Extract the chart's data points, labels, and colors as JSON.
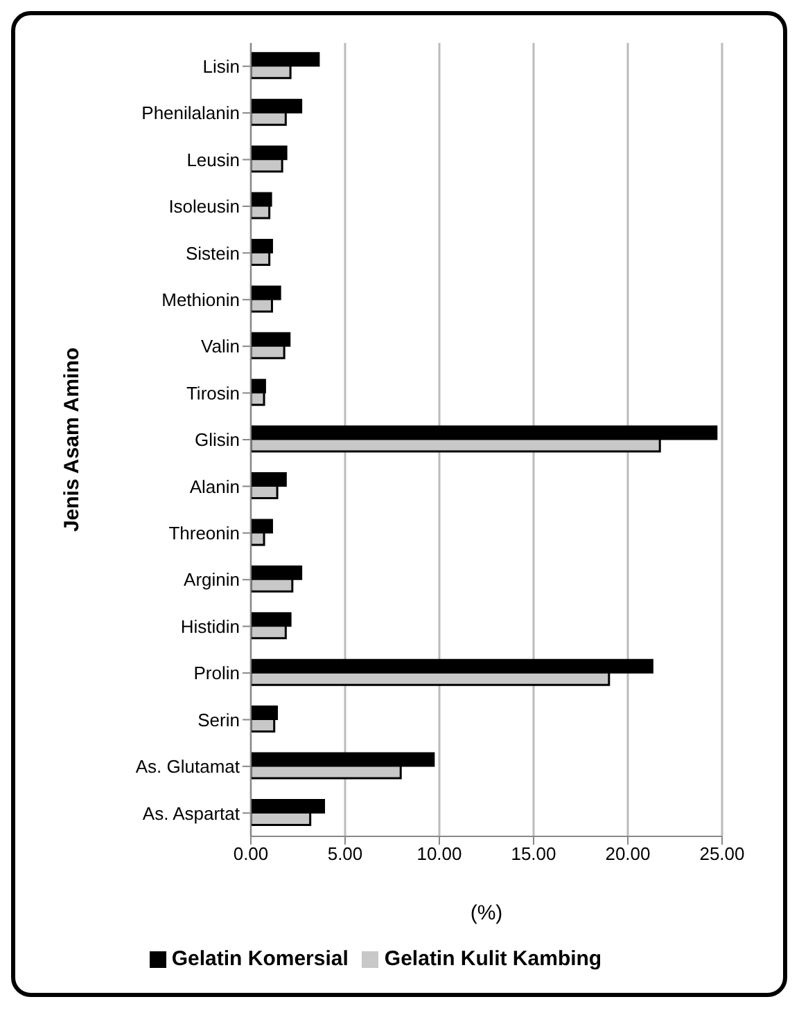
{
  "chart_data": {
    "type": "bar",
    "orientation": "horizontal",
    "ylabel": "Jenis Asam Amino",
    "xlabel": "(%)",
    "categories": [
      "Lisin",
      "Phenilalanin",
      "Leusin",
      "Isoleusin",
      "Sistein",
      "Methionin",
      "Valin",
      "Tirosin",
      "Glisin",
      "Alanin",
      "Threonin",
      "Arginin",
      "Histidin",
      "Prolin",
      "Serin",
      "As. Glutamat",
      "As. Aspartat"
    ],
    "series": [
      {
        "name": "Gelatin Komersial",
        "color": "#000000",
        "values": [
          3.6,
          2.67,
          1.88,
          1.07,
          1.12,
          1.55,
          2.05,
          0.75,
          24.7,
          1.85,
          1.12,
          2.67,
          2.1,
          21.3,
          1.38,
          9.7,
          3.88
        ]
      },
      {
        "name": "Gelatin Kulit Kambing",
        "color": "#c8c8c8",
        "values": [
          2.1,
          1.85,
          1.66,
          0.98,
          0.98,
          1.12,
          1.77,
          0.7,
          21.7,
          1.4,
          0.7,
          2.2,
          1.85,
          19.0,
          1.24,
          7.95,
          3.15
        ]
      }
    ],
    "xlim": [
      0,
      25
    ],
    "xticks": [
      {
        "value": 0,
        "label": "0.00"
      },
      {
        "value": 5,
        "label": "5.00"
      },
      {
        "value": 10,
        "label": "10.00"
      },
      {
        "value": 15,
        "label": "15.00"
      },
      {
        "value": 20,
        "label": "20.00"
      },
      {
        "value": 25,
        "label": "25.00"
      }
    ],
    "grid": "x",
    "legend": "bottom"
  }
}
